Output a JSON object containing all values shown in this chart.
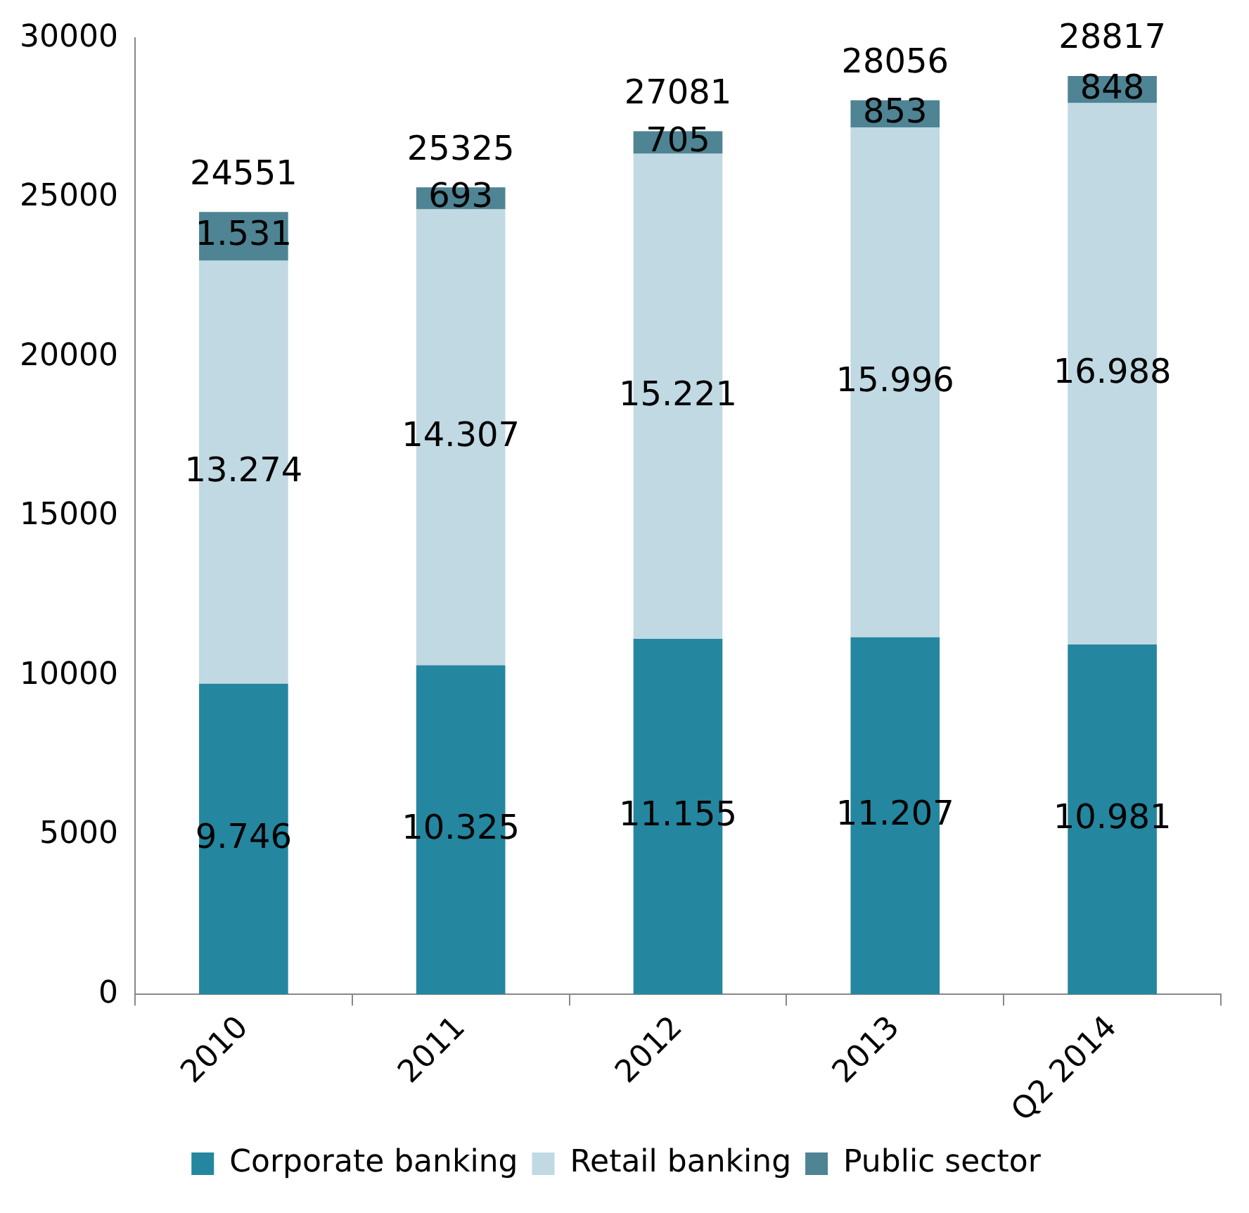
{
  "chart_data": {
    "type": "bar",
    "stacked": true,
    "categories": [
      "2010",
      "2011",
      "2012",
      "2013",
      "Q2 2014"
    ],
    "series": [
      {
        "name": "Corporate banking",
        "color": "#24869f",
        "values": [
          9746,
          10325,
          11155,
          11207,
          10981
        ],
        "value_labels": [
          "9.746",
          "10.325",
          "11.155",
          "11.207",
          "10.981"
        ]
      },
      {
        "name": "Retail banking",
        "color": "#c0d9e3",
        "values": [
          13274,
          14307,
          15221,
          15996,
          16988
        ],
        "value_labels": [
          "13.274",
          "14.307",
          "15.221",
          "15.996",
          "16.988"
        ]
      },
      {
        "name": "Public sector",
        "color": "#4e8494",
        "values": [
          1531,
          693,
          705,
          853,
          848
        ],
        "value_labels": [
          "1.531",
          "693",
          "705",
          "853",
          "848"
        ]
      }
    ],
    "totals": [
      "24551",
      "25325",
      "27081",
      "28056",
      "28817"
    ],
    "ylim": [
      0,
      30000
    ],
    "yticks": [
      0,
      5000,
      10000,
      15000,
      20000,
      25000,
      30000
    ],
    "grid": false,
    "legend": "bottom"
  }
}
